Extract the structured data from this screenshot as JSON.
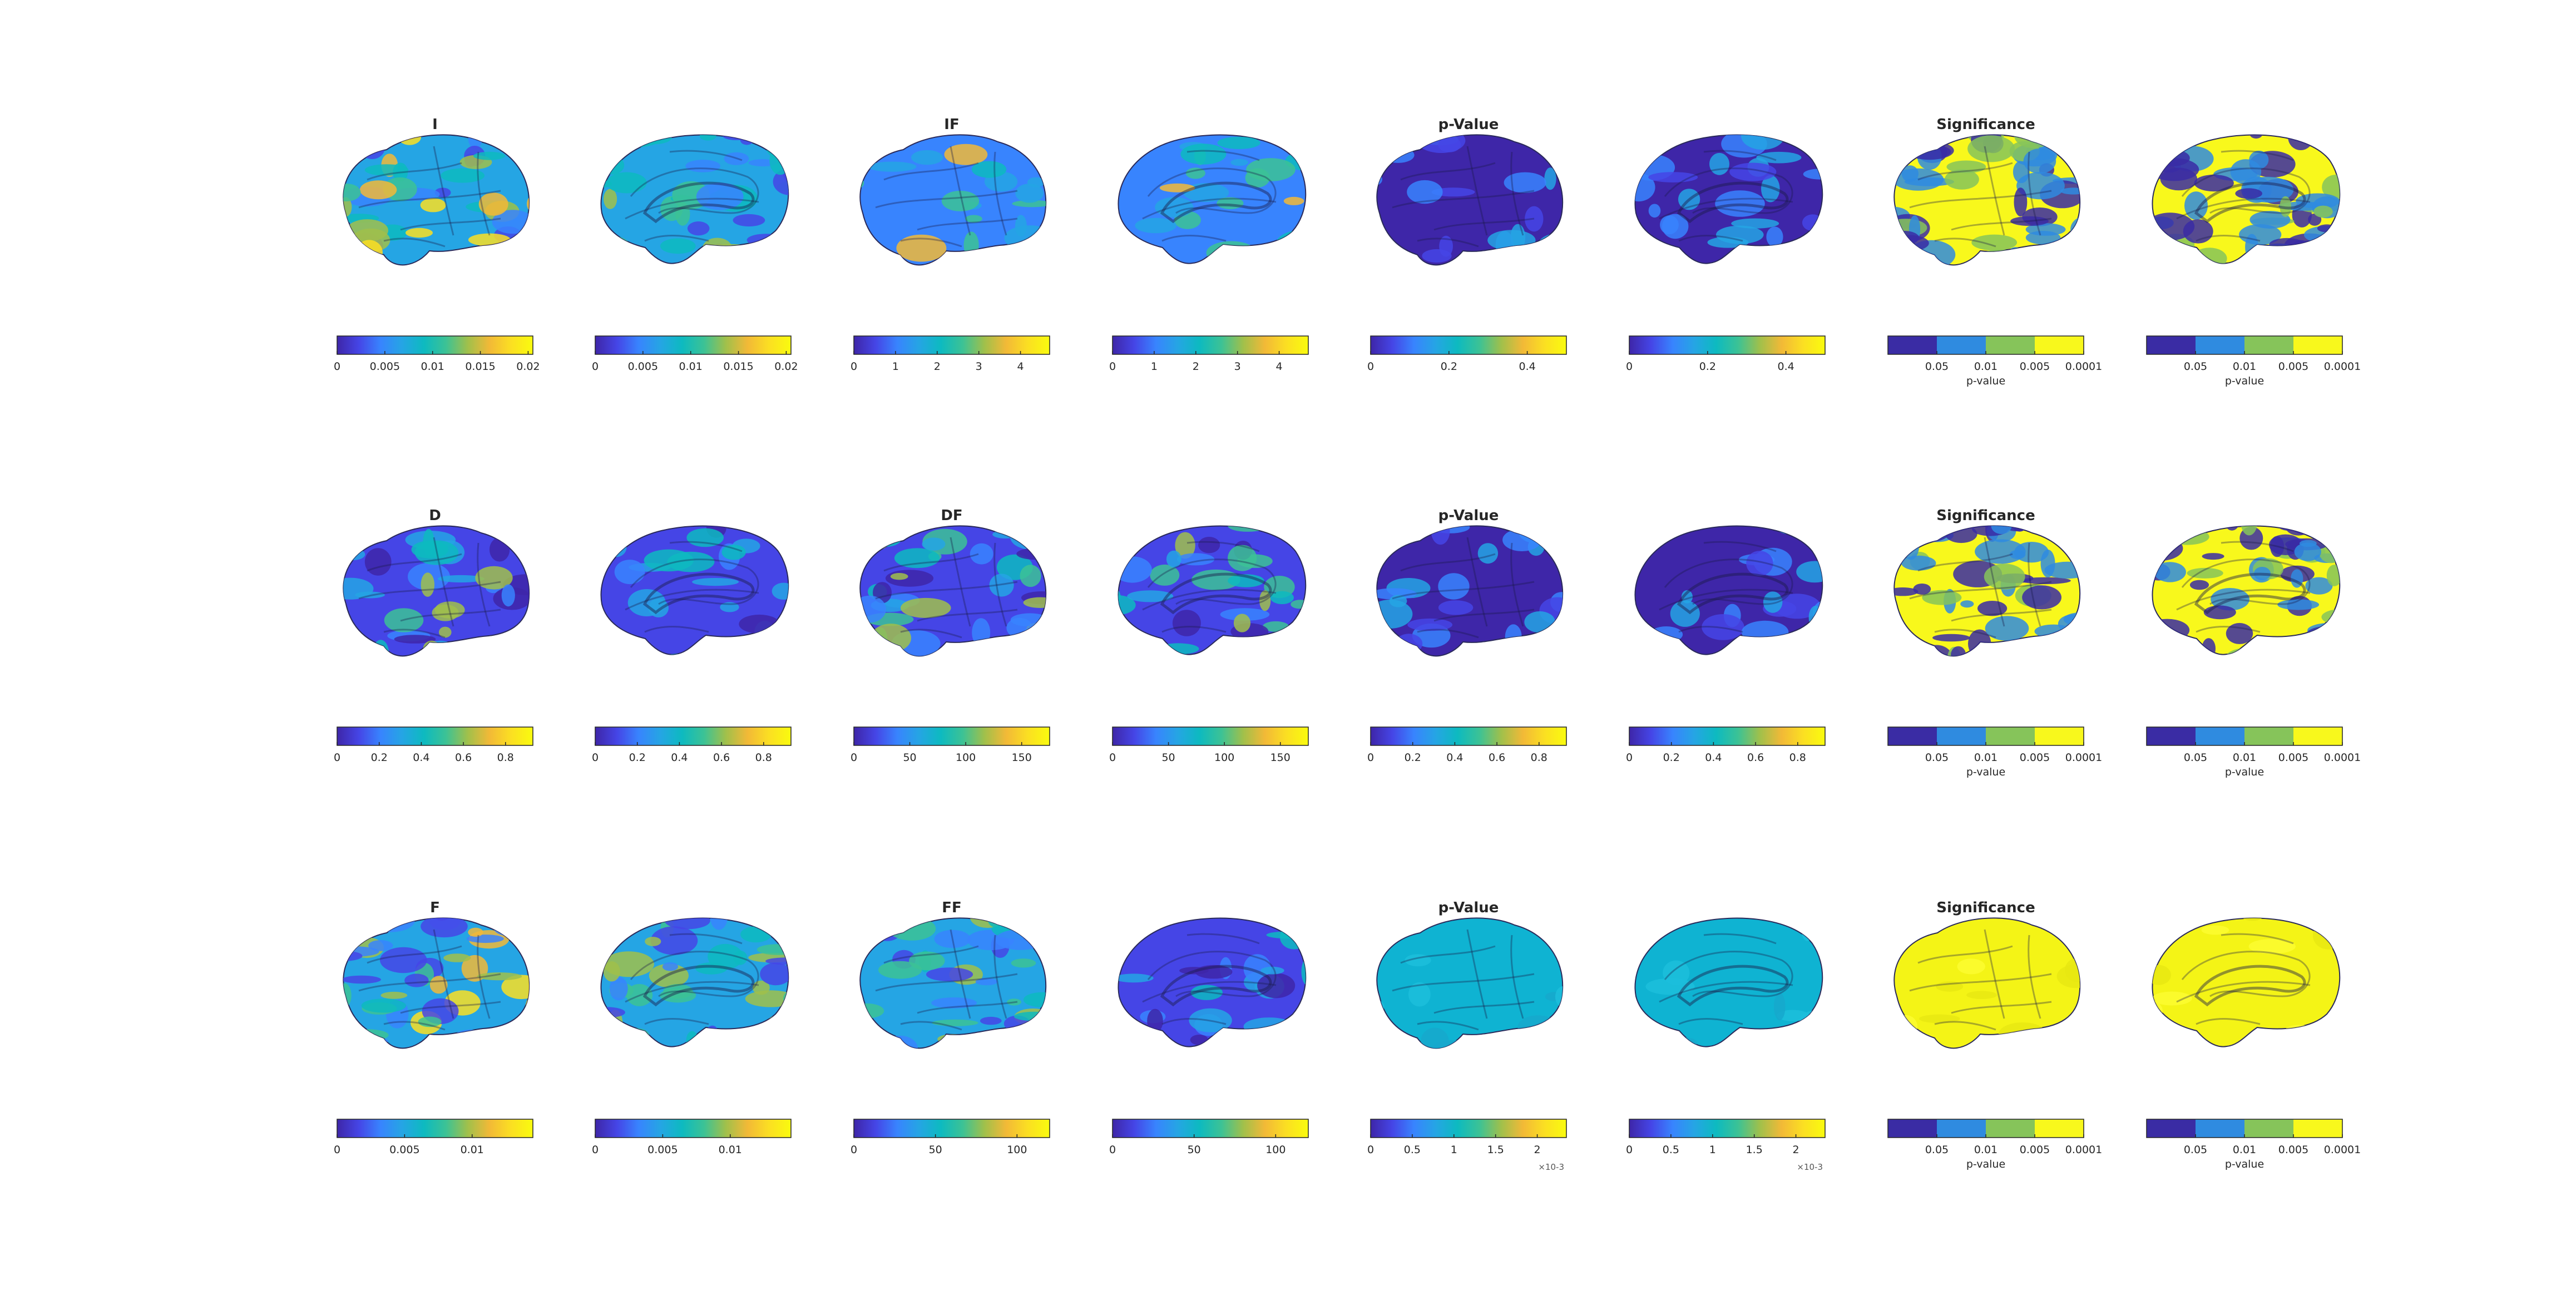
{
  "colors": {
    "parula": [
      "#3e26a8",
      "#4545e6",
      "#3884fe",
      "#25a5e4",
      "#0dbac0",
      "#3cc295",
      "#a0c04b",
      "#f2b937",
      "#fbdf22",
      "#f9fb0e"
    ],
    "significance": [
      "#3a2ca4",
      "#2f8be0",
      "#86c45a",
      "#f8f81c"
    ]
  },
  "rows": [
    {
      "panels": [
        {
          "title": "I",
          "view": "lateral",
          "pattern": "mixed-warm",
          "colorbar": {
            "type": "continuous",
            "ticks": [
              "0",
              "0.005",
              "0.01",
              "0.015",
              "0.02"
            ],
            "max": 0.0205
          }
        },
        {
          "title": "",
          "view": "medial",
          "pattern": "mixed-medium",
          "colorbar": {
            "type": "continuous",
            "ticks": [
              "0",
              "0.005",
              "0.01",
              "0.015",
              "0.02"
            ],
            "max": 0.0205
          }
        },
        {
          "title": "IF",
          "view": "lateral",
          "pattern": "mostly-light-blue",
          "colorbar": {
            "type": "continuous",
            "ticks": [
              "0",
              "1",
              "2",
              "3",
              "4"
            ],
            "max": 4.7
          }
        },
        {
          "title": "",
          "view": "medial",
          "pattern": "mostly-light-blue",
          "colorbar": {
            "type": "continuous",
            "ticks": [
              "0",
              "1",
              "2",
              "3",
              "4"
            ],
            "max": 4.7
          }
        },
        {
          "title": "p-Value",
          "view": "lateral",
          "pattern": "dark",
          "colorbar": {
            "type": "continuous",
            "ticks": [
              "0",
              "0.2",
              "0.4"
            ],
            "max": 0.5
          }
        },
        {
          "title": "",
          "view": "medial",
          "pattern": "dark",
          "colorbar": {
            "type": "continuous",
            "ticks": [
              "0",
              "0.2",
              "0.4"
            ],
            "max": 0.5
          }
        },
        {
          "title": "Significance",
          "view": "lateral",
          "pattern": "sig-mixed",
          "colorbar": {
            "type": "discrete",
            "ticks": [
              "0.05",
              "0.01",
              "0.005",
              "0.0001"
            ],
            "label": "p-value"
          }
        },
        {
          "title": "",
          "view": "medial",
          "pattern": "sig-mixed",
          "colorbar": {
            "type": "discrete",
            "ticks": [
              "0.05",
              "0.01",
              "0.005",
              "0.0001"
            ],
            "label": "p-value"
          }
        }
      ]
    },
    {
      "panels": [
        {
          "title": "D",
          "view": "lateral",
          "pattern": "mixed-dark",
          "colorbar": {
            "type": "continuous",
            "ticks": [
              "0",
              "0.2",
              "0.4",
              "0.6",
              "0.8"
            ],
            "max": 0.93
          }
        },
        {
          "title": "",
          "view": "medial",
          "pattern": "dark-blue",
          "colorbar": {
            "type": "continuous",
            "ticks": [
              "0",
              "0.2",
              "0.4",
              "0.6",
              "0.8"
            ],
            "max": 0.93
          }
        },
        {
          "title": "DF",
          "view": "lateral",
          "pattern": "mixed-dark",
          "colorbar": {
            "type": "continuous",
            "ticks": [
              "0",
              "50",
              "100",
              "150"
            ],
            "max": 175
          }
        },
        {
          "title": "",
          "view": "medial",
          "pattern": "mixed-dark",
          "colorbar": {
            "type": "continuous",
            "ticks": [
              "0",
              "50",
              "100",
              "150"
            ],
            "max": 175
          }
        },
        {
          "title": "p-Value",
          "view": "lateral",
          "pattern": "dark",
          "colorbar": {
            "type": "continuous",
            "ticks": [
              "0",
              "0.2",
              "0.4",
              "0.6",
              "0.8"
            ],
            "max": 0.93
          }
        },
        {
          "title": "",
          "view": "medial",
          "pattern": "dark",
          "colorbar": {
            "type": "continuous",
            "ticks": [
              "0",
              "0.2",
              "0.4",
              "0.6",
              "0.8"
            ],
            "max": 0.93
          }
        },
        {
          "title": "Significance",
          "view": "lateral",
          "pattern": "sig-mixed",
          "colorbar": {
            "type": "discrete",
            "ticks": [
              "0.05",
              "0.01",
              "0.005",
              "0.0001"
            ],
            "label": "p-value"
          }
        },
        {
          "title": "",
          "view": "medial",
          "pattern": "sig-mixed",
          "colorbar": {
            "type": "discrete",
            "ticks": [
              "0.05",
              "0.01",
              "0.005",
              "0.0001"
            ],
            "label": "p-value"
          }
        }
      ]
    },
    {
      "panels": [
        {
          "title": "F",
          "view": "lateral",
          "pattern": "mixed-warm",
          "colorbar": {
            "type": "continuous",
            "ticks": [
              "0",
              "0.005",
              "0.01"
            ],
            "max": 0.0145
          }
        },
        {
          "title": "",
          "view": "medial",
          "pattern": "mixed-medium",
          "colorbar": {
            "type": "continuous",
            "ticks": [
              "0",
              "0.005",
              "0.01"
            ],
            "max": 0.0145
          }
        },
        {
          "title": "FF",
          "view": "lateral",
          "pattern": "mixed-medium",
          "colorbar": {
            "type": "continuous",
            "ticks": [
              "0",
              "50",
              "100"
            ],
            "max": 120
          }
        },
        {
          "title": "",
          "view": "medial",
          "pattern": "dark-blue",
          "colorbar": {
            "type": "continuous",
            "ticks": [
              "0",
              "50",
              "100"
            ],
            "max": 120
          }
        },
        {
          "title": "p-Value",
          "view": "lateral",
          "pattern": "uniform-cyan",
          "colorbar": {
            "type": "continuous",
            "ticks": [
              "0",
              "0.5",
              "1",
              "1.5",
              "2"
            ],
            "max": 2.35,
            "exponent": "×10-3"
          }
        },
        {
          "title": "",
          "view": "medial",
          "pattern": "uniform-cyan",
          "colorbar": {
            "type": "continuous",
            "ticks": [
              "0",
              "0.5",
              "1",
              "1.5",
              "2"
            ],
            "max": 2.35,
            "exponent": "×10-3"
          }
        },
        {
          "title": "Significance",
          "view": "lateral",
          "pattern": "uniform-yellow",
          "colorbar": {
            "type": "discrete",
            "ticks": [
              "0.05",
              "0.01",
              "0.005",
              "0.0001"
            ],
            "label": "p-value"
          }
        },
        {
          "title": "",
          "view": "medial",
          "pattern": "uniform-yellow",
          "colorbar": {
            "type": "discrete",
            "ticks": [
              "0.05",
              "0.01",
              "0.005",
              "0.0001"
            ],
            "label": "p-value"
          }
        }
      ]
    }
  ]
}
